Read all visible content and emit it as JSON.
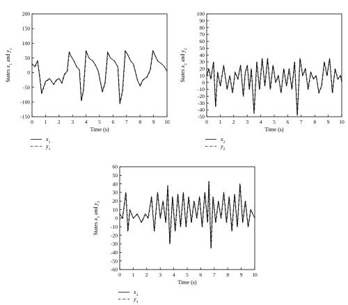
{
  "chart_data": [
    {
      "type": "line",
      "ylabel": "States x1 and y1",
      "ylabel_parts": {
        "pre": "States ",
        "v1": "x",
        "s1": "1",
        "mid": " and ",
        "v2": "y",
        "s2": "1"
      },
      "xlabel": "Time (s)",
      "xlim": [
        0,
        10
      ],
      "ylim": [
        -150,
        200
      ],
      "xticks": [
        0,
        1,
        2,
        3,
        4,
        5,
        6,
        7,
        8,
        9,
        10
      ],
      "yticks": [
        -150,
        -100,
        -50,
        0,
        50,
        100,
        150,
        200
      ],
      "grid": false,
      "legend_position": "bottom-left",
      "series": [
        {
          "name": "x1",
          "legend_var": "x",
          "legend_sub": "1",
          "style": "solid"
        },
        {
          "name": "y1",
          "legend_var": "y",
          "legend_sub": "1",
          "style": "dash-dot"
        }
      ],
      "x": [
        0,
        0.2,
        0.4,
        0.55,
        0.7,
        1.0,
        1.3,
        1.6,
        1.8,
        2.0,
        2.2,
        2.4,
        2.6,
        2.75,
        2.9,
        3.1,
        3.3,
        3.5,
        3.65,
        3.8,
        4.0,
        4.2,
        4.5,
        4.7,
        4.9,
        5.2,
        5.4,
        5.6,
        5.8,
        6.1,
        6.35,
        6.5,
        6.7,
        6.9,
        7.1,
        7.3,
        7.5,
        7.8,
        8.0,
        8.2,
        8.5,
        8.75,
        8.95,
        9.1,
        9.3,
        9.6,
        9.8,
        10
      ],
      "values": [
        30,
        20,
        40,
        -10,
        -70,
        -30,
        -20,
        -40,
        -25,
        -20,
        -35,
        -5,
        5,
        70,
        55,
        40,
        20,
        10,
        -95,
        -60,
        75,
        50,
        40,
        25,
        5,
        -65,
        -35,
        70,
        50,
        40,
        20,
        -105,
        -60,
        75,
        60,
        40,
        30,
        -25,
        -45,
        -25,
        -15,
        10,
        75,
        60,
        40,
        30,
        20,
        5
      ]
    },
    {
      "type": "line",
      "ylabel": "States x2 and y2",
      "ylabel_parts": {
        "pre": "States ",
        "v1": "x",
        "s1": "2",
        "mid": " and ",
        "v2": "y",
        "s2": "2"
      },
      "xlabel": "Time (s)",
      "xlim": [
        0,
        10
      ],
      "ylim": [
        -50,
        100
      ],
      "xticks": [
        0,
        1,
        2,
        3,
        4,
        5,
        6,
        7,
        8,
        9,
        10
      ],
      "yticks": [
        -50,
        -40,
        -30,
        -20,
        -10,
        0,
        10,
        20,
        30,
        40,
        50,
        60,
        70,
        80,
        90,
        100
      ],
      "grid": false,
      "legend_position": "bottom-left",
      "series": [
        {
          "name": "x2",
          "legend_var": "x",
          "legend_sub": "2",
          "style": "solid"
        },
        {
          "name": "y2",
          "legend_var": "y",
          "legend_sub": "2",
          "style": "dash-dot"
        }
      ],
      "x": [
        0,
        0.15,
        0.3,
        0.5,
        0.65,
        0.8,
        1.0,
        1.25,
        1.5,
        1.7,
        1.9,
        2.1,
        2.3,
        2.5,
        2.7,
        2.85,
        3.0,
        3.15,
        3.3,
        3.5,
        3.7,
        3.9,
        4.1,
        4.3,
        4.5,
        4.7,
        4.9,
        5.1,
        5.3,
        5.5,
        5.7,
        5.9,
        6.1,
        6.3,
        6.5,
        6.7,
        6.9,
        7.1,
        7.3,
        7.5,
        7.7,
        7.9,
        8.1,
        8.3,
        8.5,
        8.7,
        8.9,
        9.1,
        9.3,
        9.5,
        9.7,
        9.9,
        10
      ],
      "values": [
        10,
        20,
        5,
        30,
        -35,
        15,
        -5,
        25,
        -10,
        10,
        -15,
        15,
        5,
        25,
        -20,
        15,
        25,
        -10,
        20,
        -45,
        30,
        -10,
        35,
        -5,
        35,
        -10,
        25,
        0,
        10,
        -15,
        20,
        -5,
        20,
        -10,
        30,
        -48,
        35,
        10,
        20,
        -10,
        15,
        5,
        10,
        -15,
        -5,
        30,
        10,
        35,
        -15,
        20,
        5,
        10,
        0
      ]
    },
    {
      "type": "line",
      "ylabel": "States x3 and y3",
      "ylabel_parts": {
        "pre": "States ",
        "v1": "x",
        "s1": "3",
        "mid": " and ",
        "v2": "y",
        "s2": "3"
      },
      "xlabel": "Time (s)",
      "xlim": [
        0,
        10
      ],
      "ylim": [
        -60,
        60
      ],
      "xticks": [
        0,
        1,
        2,
        3,
        4,
        5,
        6,
        7,
        8,
        9,
        10
      ],
      "yticks": [
        -60,
        -50,
        -40,
        -30,
        -20,
        -10,
        0,
        10,
        20,
        30,
        40,
        50,
        60
      ],
      "grid": false,
      "legend_position": "bottom-left",
      "series": [
        {
          "name": "x3",
          "legend_var": "x",
          "legend_sub": "3",
          "style": "solid"
        },
        {
          "name": "y3",
          "legend_var": "y",
          "legend_sub": "3",
          "style": "dash-dot"
        }
      ],
      "x": [
        0,
        0.2,
        0.45,
        0.6,
        0.75,
        1.0,
        1.3,
        1.6,
        1.9,
        2.1,
        2.35,
        2.55,
        2.8,
        3.0,
        3.2,
        3.4,
        3.55,
        3.7,
        3.9,
        4.1,
        4.3,
        4.5,
        4.7,
        4.9,
        5.1,
        5.3,
        5.5,
        5.7,
        5.9,
        6.1,
        6.3,
        6.5,
        6.6,
        6.75,
        6.9,
        7.1,
        7.3,
        7.5,
        7.7,
        7.9,
        8.1,
        8.3,
        8.5,
        8.7,
        8.9,
        9.1,
        9.3,
        9.5,
        9.7,
        10
      ],
      "values": [
        5,
        0,
        30,
        -15,
        10,
        0,
        5,
        -5,
        5,
        0,
        25,
        -15,
        30,
        0,
        20,
        -5,
        38,
        -30,
        25,
        -15,
        28,
        -10,
        30,
        -10,
        25,
        -5,
        20,
        0,
        25,
        -10,
        30,
        -5,
        43,
        -35,
        25,
        -5,
        20,
        0,
        30,
        -5,
        25,
        -15,
        28,
        -10,
        40,
        -5,
        20,
        -10,
        10,
        0
      ]
    }
  ]
}
